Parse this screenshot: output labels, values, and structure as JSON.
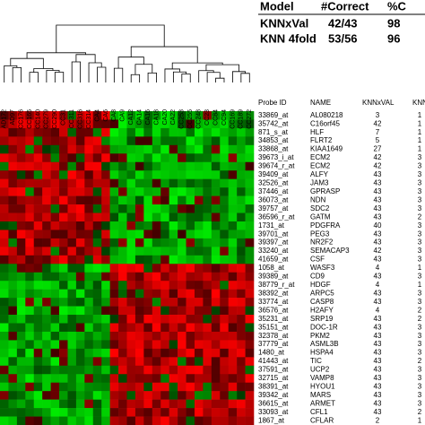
{
  "model_table": {
    "headers": [
      "Model",
      "#Correct",
      "%C"
    ],
    "rows": [
      [
        "KNNxVal",
        "42/43",
        "98"
      ],
      [
        "KNN 4fold",
        "53/56",
        "96"
      ]
    ]
  },
  "heatmap": {
    "column_labels": [
      "AD172",
      "AD97",
      "CC176",
      "CC165",
      "CC140",
      "CC279",
      "CC290",
      "CC31",
      "CC311",
      "CC316",
      "CC314",
      "CA4",
      "CA6",
      "CA8",
      "CA9",
      "CA12",
      "CA14",
      "CA16",
      "CA18",
      "CA20",
      "CA22",
      "CC253",
      "CC255",
      "CC248",
      "CC23",
      "CC84",
      "CC94",
      "CC169",
      "CC189",
      "CC272"
    ]
  },
  "gene_table": {
    "headers": [
      "Probe ID",
      "NAME",
      "KNNxVAL",
      "KNN"
    ],
    "rows": [
      [
        "33869_at",
        "AL080218",
        3,
        1
      ],
      [
        "35742_at",
        "C16orf45",
        42,
        1
      ],
      [
        "871_s_at",
        "HLF",
        7,
        1
      ],
      [
        "34853_at",
        "FLRT2",
        5,
        1
      ],
      [
        "33868_at",
        "KIAA1649",
        27,
        1
      ],
      [
        "39673_i_at",
        "ECM2",
        42,
        3
      ],
      [
        "39674_r_at",
        "ECM2",
        42,
        3
      ],
      [
        "39409_at",
        "ALFY",
        43,
        3
      ],
      [
        "32526_at",
        "JAM3",
        43,
        3
      ],
      [
        "37446_at",
        "GPRASP",
        43,
        3
      ],
      [
        "36073_at",
        "NDN",
        43,
        3
      ],
      [
        "39757_at",
        "SDC2",
        43,
        3
      ],
      [
        "36596_r_at",
        "GATM",
        43,
        2
      ],
      [
        "1731_at",
        "PDGFRA",
        40,
        3
      ],
      [
        "39701_at",
        "PEG3",
        43,
        3
      ],
      [
        "39397_at",
        "NR2F2",
        43,
        3
      ],
      [
        "33240_at",
        "SEMACAP3",
        42,
        3
      ],
      [
        "41659_at",
        "CSF",
        43,
        3
      ],
      [
        "1058_at",
        "WASF3",
        4,
        1
      ],
      [
        "39389_at",
        "CD9",
        43,
        3
      ],
      [
        "38779_r_at",
        "HDGF",
        4,
        1
      ],
      [
        "38392_at",
        "ARPC5",
        43,
        3
      ],
      [
        "33774_at",
        "CASP8",
        43,
        3
      ],
      [
        "36576_at",
        "H2AFY",
        4,
        2
      ],
      [
        "35231_at",
        "SRP19",
        43,
        2
      ],
      [
        "35151_at",
        "DOC-1R",
        43,
        3
      ],
      [
        "32378_at",
        "PKM2",
        43,
        3
      ],
      [
        "37779_at",
        "ASML3B",
        43,
        3
      ],
      [
        "1480_at",
        "HSPA4",
        43,
        3
      ],
      [
        "41443_at",
        "TIC",
        43,
        2
      ],
      [
        "37591_at",
        "UCP2",
        43,
        3
      ],
      [
        "32715_at",
        "VAMP8",
        43,
        3
      ],
      [
        "38391_at",
        "HYOU1",
        43,
        3
      ],
      [
        "39342_at",
        "MARS",
        43,
        3
      ],
      [
        "36615_at",
        "ARMET",
        43,
        3
      ],
      [
        "33093_at",
        "CFL1",
        43,
        2
      ],
      [
        "1867_at",
        "CFLAR",
        2,
        1
      ]
    ]
  }
}
